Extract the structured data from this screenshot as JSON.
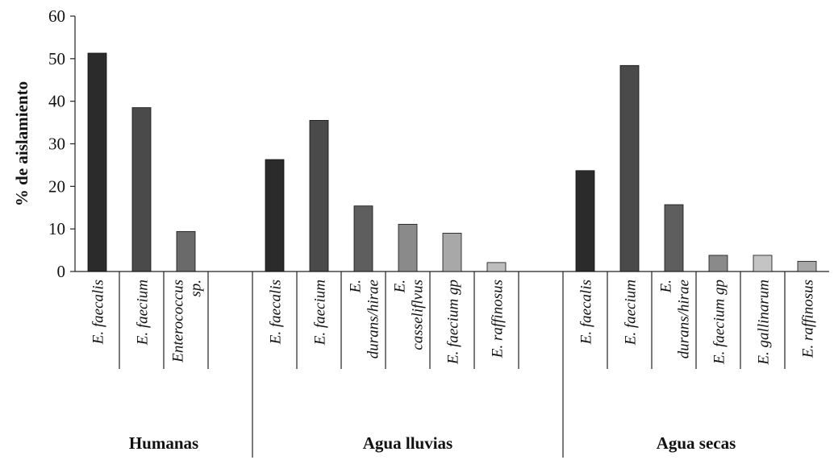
{
  "chart_data": {
    "type": "bar",
    "ylabel": "% de aislamiento",
    "ylim": [
      0,
      60
    ],
    "yticks": [
      0,
      10,
      20,
      30,
      40,
      50,
      60
    ],
    "grid": false,
    "legend": "none",
    "groups": [
      {
        "name": "Humanas",
        "bars": [
          {
            "category": [
              "E. faecalis"
            ],
            "value": 51.3,
            "color": "#2b2b2b"
          },
          {
            "category": [
              "E. faecium"
            ],
            "value": 38.5,
            "color": "#4a4a4a"
          },
          {
            "category": [
              "Enterococcus",
              "sp."
            ],
            "value": 9.4,
            "color": "#6a6a6a"
          }
        ],
        "slots": 4
      },
      {
        "name": "Agua lluvias",
        "bars": [
          {
            "category": [
              "E. faecalis"
            ],
            "value": 26.3,
            "color": "#2b2b2b"
          },
          {
            "category": [
              "E. faecium"
            ],
            "value": 35.5,
            "color": "#4a4a4a"
          },
          {
            "category": [
              "E.",
              "durans/hirae"
            ],
            "value": 15.4,
            "color": "#5e5e5e"
          },
          {
            "category": [
              "E.",
              "casseliflvus"
            ],
            "value": 11.1,
            "color": "#8a8a8a"
          },
          {
            "category": [
              "E. faecium gp"
            ],
            "value": 9.0,
            "color": "#a8a8a8"
          },
          {
            "category": [
              "E. raffinosus"
            ],
            "value": 2.1,
            "color": "#bdbdbd"
          }
        ],
        "slots": 7
      },
      {
        "name": "Agua secas",
        "bars": [
          {
            "category": [
              "E. faecalis"
            ],
            "value": 23.7,
            "color": "#2b2b2b"
          },
          {
            "category": [
              "E. faecium"
            ],
            "value": 48.4,
            "color": "#4a4a4a"
          },
          {
            "category": [
              "E.",
              "durans/hirae"
            ],
            "value": 15.7,
            "color": "#5e5e5e"
          },
          {
            "category": [
              "E. faecium gp"
            ],
            "value": 3.8,
            "color": "#8a8a8a"
          },
          {
            "category": [
              "E. gallinarum"
            ],
            "value": 3.8,
            "color": "#c4c4c4"
          },
          {
            "category": [
              "E. raffinosus"
            ],
            "value": 2.4,
            "color": "#a8a8a8"
          }
        ],
        "slots": 6
      }
    ]
  }
}
